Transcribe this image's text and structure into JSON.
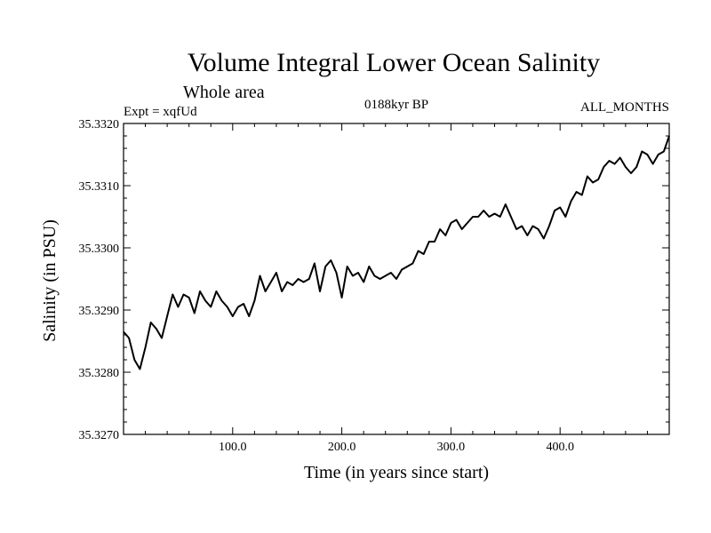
{
  "chart_data": {
    "type": "line",
    "title": "Volume Integral Lower Ocean Salinity",
    "subtitle": "Whole area",
    "experiment_label": "Expt = xqfUd",
    "period_label": "0188kyr BP",
    "months_label": "ALL_MONTHS",
    "xlabel": "Time (in years since start)",
    "ylabel": "Salinity (in PSU)",
    "xlim": [
      0,
      500
    ],
    "ylim": [
      35.327,
      35.332
    ],
    "x_ticks": [
      100,
      200,
      300,
      400
    ],
    "x_tick_labels": [
      "100.0",
      "200.0",
      "300.0",
      "400.0"
    ],
    "y_ticks": [
      35.327,
      35.328,
      35.329,
      35.33,
      35.331,
      35.332
    ],
    "y_tick_labels": [
      "35.3270",
      "35.3280",
      "35.3290",
      "35.3300",
      "35.3310",
      "35.3320"
    ],
    "grid": false,
    "series": [
      {
        "name": "salinity",
        "color": "#000000",
        "x": [
          0,
          5,
          10,
          15,
          20,
          25,
          30,
          35,
          40,
          45,
          50,
          55,
          60,
          65,
          70,
          75,
          80,
          85,
          90,
          95,
          100,
          105,
          110,
          115,
          120,
          125,
          130,
          135,
          140,
          145,
          150,
          155,
          160,
          165,
          170,
          175,
          180,
          185,
          190,
          195,
          200,
          205,
          210,
          215,
          220,
          225,
          230,
          235,
          240,
          245,
          250,
          255,
          260,
          265,
          270,
          275,
          280,
          285,
          290,
          295,
          300,
          305,
          310,
          315,
          320,
          325,
          330,
          335,
          340,
          345,
          350,
          355,
          360,
          365,
          370,
          375,
          380,
          385,
          390,
          395,
          400,
          405,
          410,
          415,
          420,
          425,
          430,
          435,
          440,
          445,
          450,
          455,
          460,
          465,
          470,
          475,
          480,
          485,
          490,
          495,
          500
        ],
        "values": [
          35.32865,
          35.32855,
          35.3282,
          35.32805,
          35.3284,
          35.3288,
          35.3287,
          35.32855,
          35.3289,
          35.32925,
          35.32905,
          35.32925,
          35.3292,
          35.32895,
          35.3293,
          35.32915,
          35.32905,
          35.3293,
          35.32915,
          35.32905,
          35.3289,
          35.32905,
          35.3291,
          35.3289,
          35.32915,
          35.32955,
          35.3293,
          35.32945,
          35.3296,
          35.3293,
          35.32945,
          35.3294,
          35.3295,
          35.32945,
          35.3295,
          35.32975,
          35.3293,
          35.3297,
          35.3298,
          35.3296,
          35.3292,
          35.3297,
          35.32955,
          35.3296,
          35.32945,
          35.3297,
          35.32955,
          35.3295,
          35.32955,
          35.3296,
          35.3295,
          35.32965,
          35.3297,
          35.32975,
          35.32995,
          35.3299,
          35.3301,
          35.3301,
          35.3303,
          35.3302,
          35.3304,
          35.33045,
          35.3303,
          35.3304,
          35.3305,
          35.3305,
          35.3306,
          35.3305,
          35.33055,
          35.3305,
          35.3307,
          35.3305,
          35.3303,
          35.33035,
          35.3302,
          35.33035,
          35.3303,
          35.33015,
          35.33035,
          35.3306,
          35.33065,
          35.3305,
          35.33075,
          35.3309,
          35.33085,
          35.33115,
          35.33105,
          35.3311,
          35.3313,
          35.3314,
          35.33135,
          35.33145,
          35.3313,
          35.3312,
          35.3313,
          35.33155,
          35.3315,
          35.33135,
          35.3315,
          35.33155,
          35.3318
        ]
      }
    ]
  }
}
